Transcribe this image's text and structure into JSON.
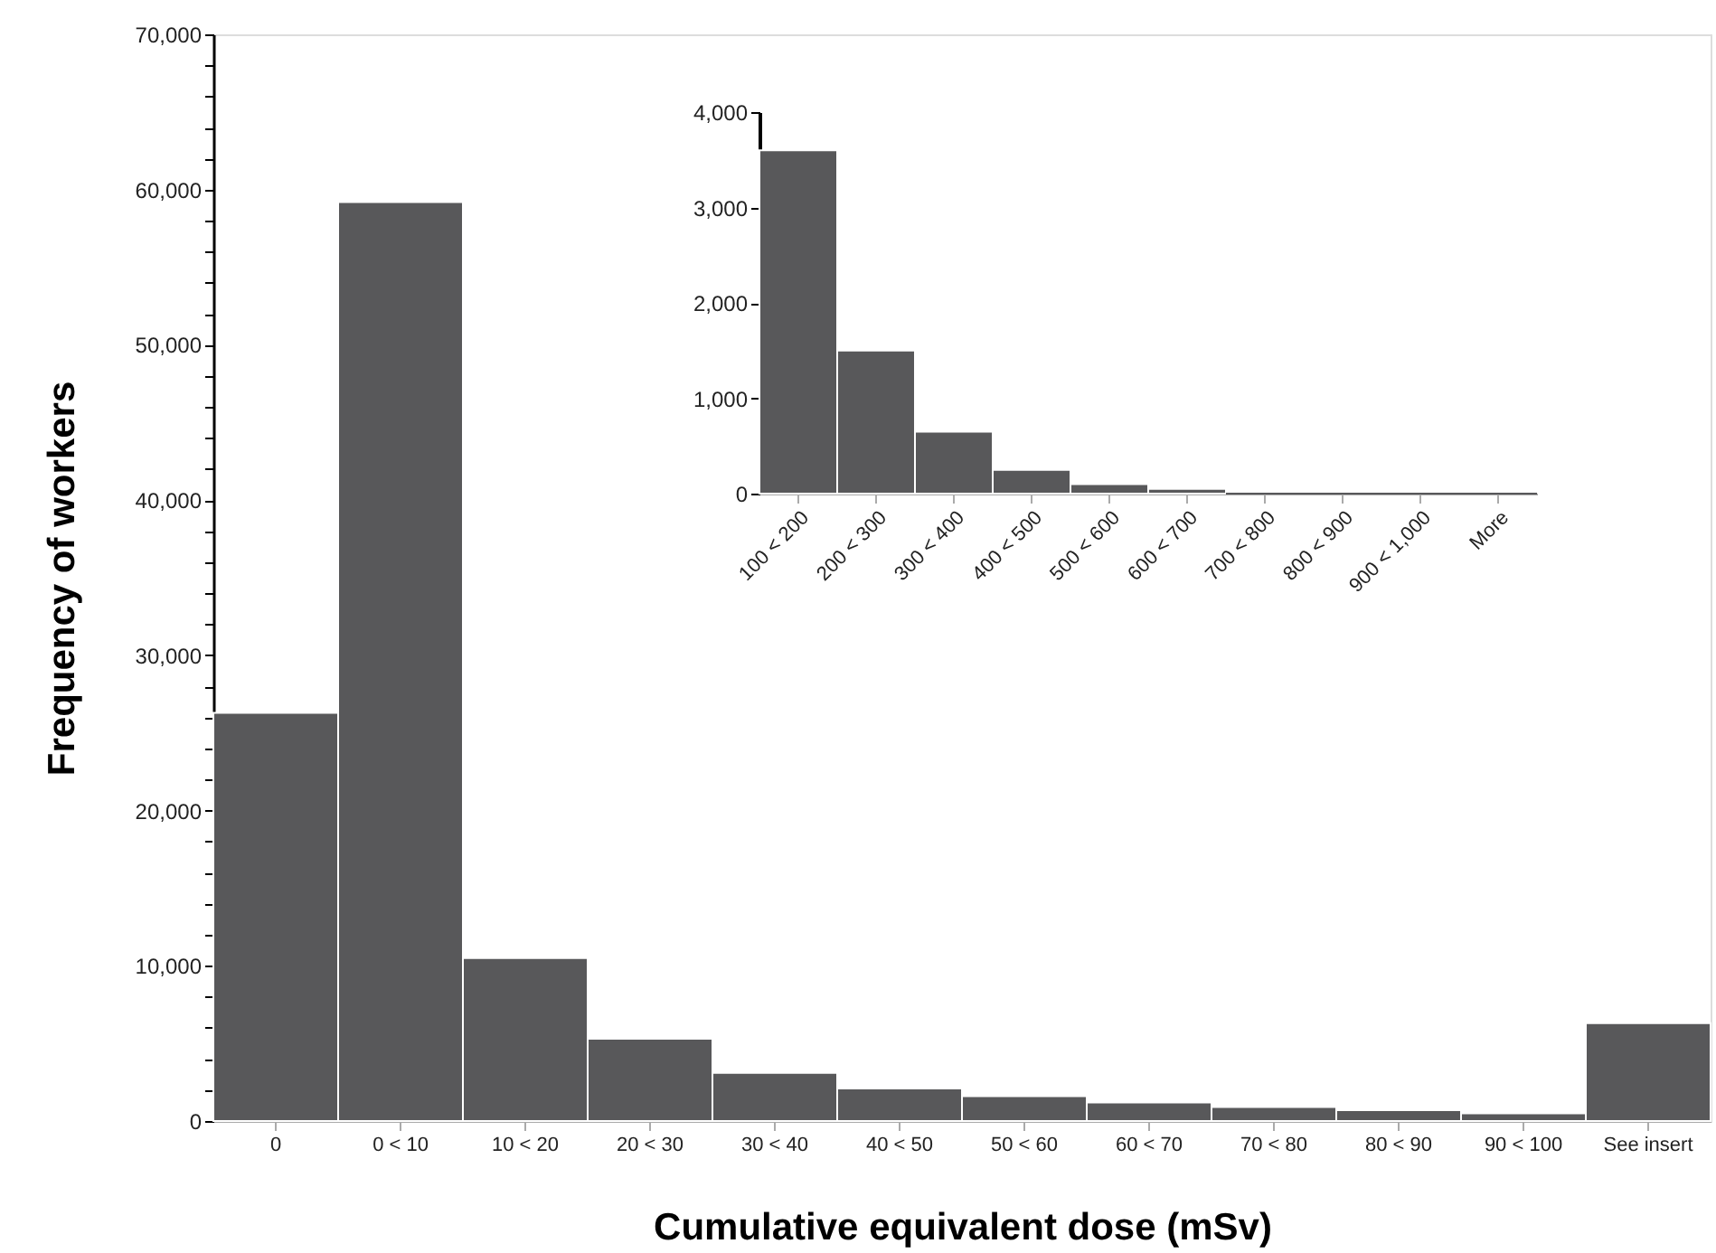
{
  "chart_data": [
    {
      "type": "bar",
      "categories": [
        "0",
        "0 < 10",
        "10 < 20",
        "20 < 30",
        "30 < 40",
        "40 < 50",
        "50 < 60",
        "60 < 70",
        "70 < 80",
        "80 < 90",
        "90 < 100",
        "See insert"
      ],
      "values": [
        26300,
        59200,
        10500,
        5300,
        3100,
        2100,
        1600,
        1200,
        900,
        700,
        500,
        6300
      ],
      "color": "#58585a",
      "xlabel": "Cumulative equivalent dose (mSv)",
      "ylabel": "Frequency of workers",
      "ylim": [
        0,
        70000
      ],
      "yticks": [
        0,
        {
          "value": 2000,
          "label": null
        },
        {
          "value": 4000,
          "label": null
        },
        {
          "value": 6000,
          "label": null
        },
        {
          "value": 8000,
          "label": null
        },
        {
          "value": 10000,
          "label": "10,000"
        },
        {
          "value": 12000,
          "label": null
        },
        {
          "value": 14000,
          "label": null
        },
        {
          "value": 16000,
          "label": null
        },
        {
          "value": 18000,
          "label": null
        },
        {
          "value": 20000,
          "label": "20,000"
        },
        {
          "value": 22000,
          "label": null
        },
        {
          "value": 24000,
          "label": null
        },
        {
          "value": 26000,
          "label": null
        },
        {
          "value": 28000,
          "label": null
        },
        {
          "value": 30000,
          "label": "30,000"
        },
        {
          "value": 32000,
          "label": null
        },
        {
          "value": 34000,
          "label": null
        },
        {
          "value": 36000,
          "label": null
        },
        {
          "value": 38000,
          "label": null
        },
        {
          "value": 40000,
          "label": "40,000"
        },
        {
          "value": 42000,
          "label": null
        },
        {
          "value": 44000,
          "label": null
        },
        {
          "value": 46000,
          "label": null
        },
        {
          "value": 48000,
          "label": null
        },
        {
          "value": 50000,
          "label": "50,000"
        },
        {
          "value": 52000,
          "label": null
        },
        {
          "value": 54000,
          "label": null
        },
        {
          "value": 56000,
          "label": null
        },
        {
          "value": 58000,
          "label": null
        },
        {
          "value": 60000,
          "label": "60,000"
        },
        {
          "value": 62000,
          "label": null
        },
        {
          "value": 64000,
          "label": null
        },
        {
          "value": 66000,
          "label": null
        },
        {
          "value": 68000,
          "label": null
        },
        {
          "value": 70000,
          "label": "70,000"
        }
      ],
      "grid": false
    },
    {
      "type": "bar",
      "categories": [
        "100 < 200",
        "200 < 300",
        "300 < 400",
        "400 < 500",
        "500 < 600",
        "600 < 700",
        "700 < 800",
        "800 < 900",
        "900 < 1,000",
        "More"
      ],
      "values": [
        3600,
        1500,
        650,
        250,
        100,
        50,
        0,
        0,
        0,
        0
      ],
      "color": "#58585a",
      "ylim": [
        0,
        4000
      ],
      "yticks": [
        0,
        {
          "value": 1000,
          "label": "1,000"
        },
        {
          "value": 2000,
          "label": "2,000"
        },
        {
          "value": 3000,
          "label": "3,000"
        },
        {
          "value": 4000,
          "label": "4,000"
        }
      ],
      "grid": false
    }
  ]
}
